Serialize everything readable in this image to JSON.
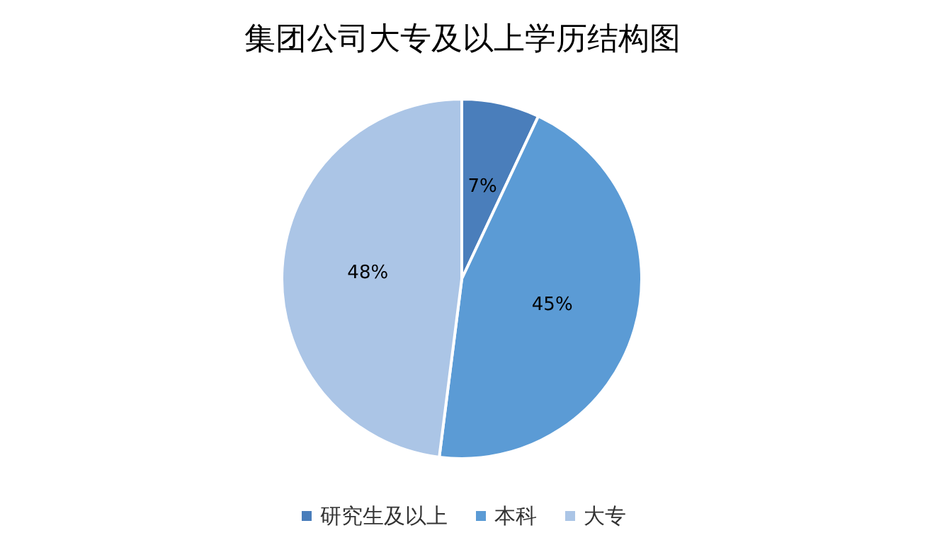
{
  "chart_data": {
    "type": "pie",
    "title": "集团公司大专及以上学历结构图",
    "categories": [
      "研究生及以上",
      "本科",
      "大专"
    ],
    "values": [
      7,
      45,
      48
    ],
    "value_labels": [
      "7%",
      "45%",
      "48%"
    ],
    "colors": [
      "#4a7ebb",
      "#5b9bd5",
      "#abc5e6"
    ],
    "legend": "bottom"
  }
}
